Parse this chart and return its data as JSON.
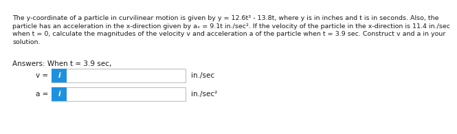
{
  "background_color": "#ffffff",
  "text_color": "#1a1a1a",
  "paragraph_line1": "The y-coordinate of a particle in curvilinear motion is given by y = 12.6t³ - 13.8t, where y is in inches and t is in seconds. Also, the",
  "paragraph_line2": "particle has an acceleration in the x-direction given by aₓ = 9.1t in./sec². If the velocity of the particle in the x-direction is 11.4 in./sec",
  "paragraph_line3": "when t = 0, calculate the magnitudes of the velocity v and acceleration a of the particle when t = 3.9 sec. Construct v and a in your",
  "paragraph_line4": "solution.",
  "answers_label": "Answers: When t = 3.9 sec,",
  "v_label": "v =",
  "a_label": "a =",
  "v_unit": "in./sec",
  "a_unit": "in./sec²",
  "icon_color": "#1e90e0",
  "icon_text": "i",
  "box_facecolor": "#ffffff",
  "box_edgecolor": "#c0c0c0",
  "font_size_paragraph": 6.8,
  "font_size_labels": 7.5,
  "font_size_answers": 7.5,
  "font_size_units": 7.5,
  "font_size_icon": 7.5
}
